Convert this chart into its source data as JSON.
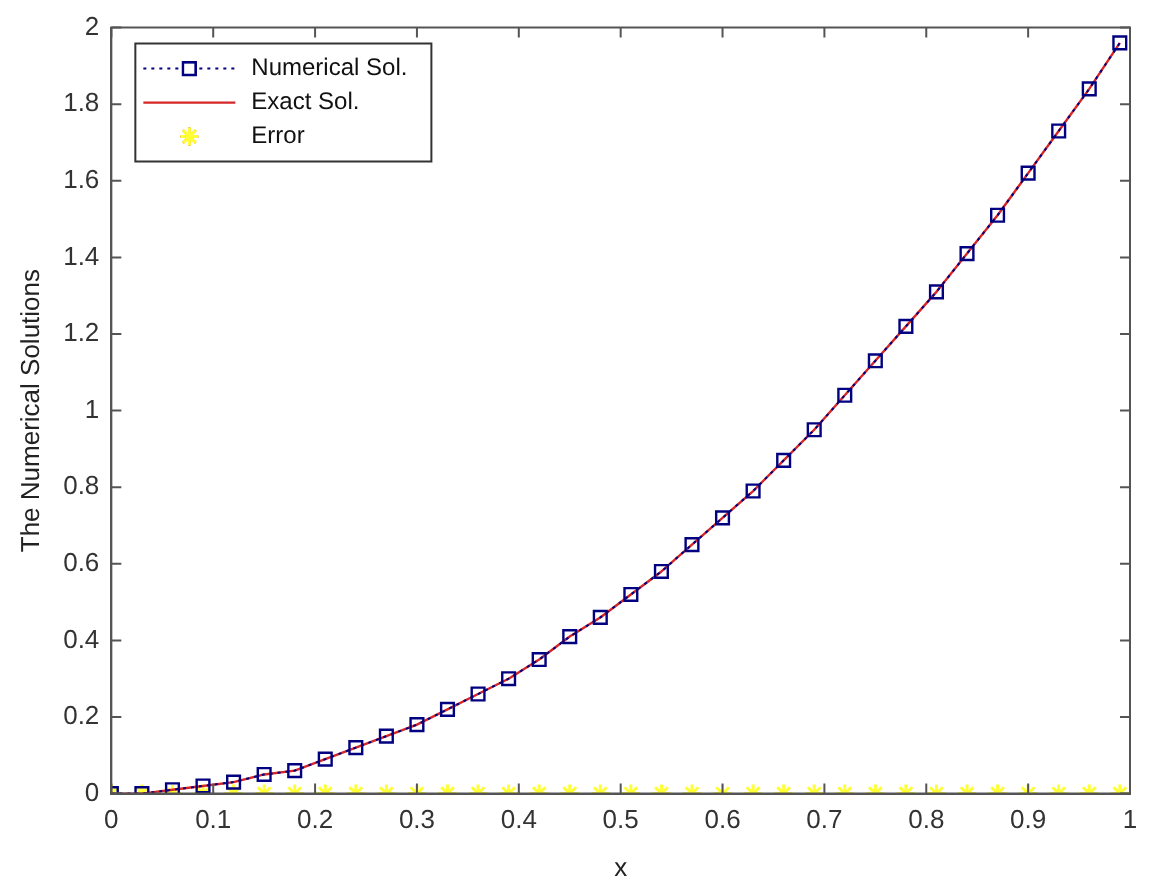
{
  "chart_data": {
    "type": "line",
    "xlabel": "x",
    "ylabel": "The Numerical Solutions",
    "x": [
      0,
      0.03,
      0.06,
      0.09,
      0.12,
      0.15,
      0.18,
      0.21,
      0.24,
      0.27,
      0.3,
      0.33,
      0.36,
      0.39,
      0.42,
      0.45,
      0.48,
      0.51,
      0.54,
      0.57,
      0.6,
      0.63,
      0.66,
      0.69,
      0.72,
      0.75,
      0.78,
      0.81,
      0.84,
      0.87,
      0.9,
      0.93,
      0.96,
      0.99
    ],
    "series": [
      {
        "name": "Numerical Sol.",
        "type": "line",
        "color": "#000080",
        "marker": "square",
        "line_style": "dotted",
        "values": [
          0,
          0,
          0.01,
          0.02,
          0.03,
          0.05,
          0.06,
          0.09,
          0.12,
          0.15,
          0.18,
          0.22,
          0.26,
          0.3,
          0.35,
          0.41,
          0.46,
          0.52,
          0.58,
          0.65,
          0.72,
          0.79,
          0.87,
          0.95,
          1.04,
          1.13,
          1.22,
          1.31,
          1.41,
          1.51,
          1.62,
          1.73,
          1.84,
          1.96
        ]
      },
      {
        "name": "Exact Sol.",
        "type": "line",
        "color": "#d62728",
        "marker": "none",
        "line_style": "solid",
        "values": [
          0,
          0,
          0.01,
          0.02,
          0.03,
          0.05,
          0.06,
          0.09,
          0.12,
          0.15,
          0.18,
          0.22,
          0.26,
          0.3,
          0.35,
          0.41,
          0.46,
          0.52,
          0.58,
          0.65,
          0.72,
          0.79,
          0.87,
          0.95,
          1.04,
          1.13,
          1.22,
          1.31,
          1.41,
          1.51,
          1.62,
          1.73,
          1.84,
          1.96
        ]
      },
      {
        "name": "Error",
        "type": "scatter",
        "color": "#ffff33",
        "marker": "cross",
        "values": [
          0,
          0,
          0,
          0,
          0,
          0,
          0,
          0,
          0,
          0,
          0,
          0,
          0,
          0,
          0,
          0,
          0,
          0,
          0,
          0,
          0,
          0,
          0,
          0,
          0,
          0,
          0,
          0,
          0,
          0,
          0,
          0,
          0,
          0
        ]
      }
    ],
    "xlim": [
      0,
      1
    ],
    "xticks": [
      0,
      0.1,
      0.2,
      0.3,
      0.4,
      0.5,
      0.6,
      0.7,
      0.8,
      0.9,
      1
    ],
    "ylim": [
      0,
      2
    ],
    "yticks": [
      0,
      0.2,
      0.4,
      0.6,
      0.8,
      1,
      1.2,
      1.4,
      1.6,
      1.8,
      2
    ],
    "grid": false,
    "legend": "top left"
  }
}
